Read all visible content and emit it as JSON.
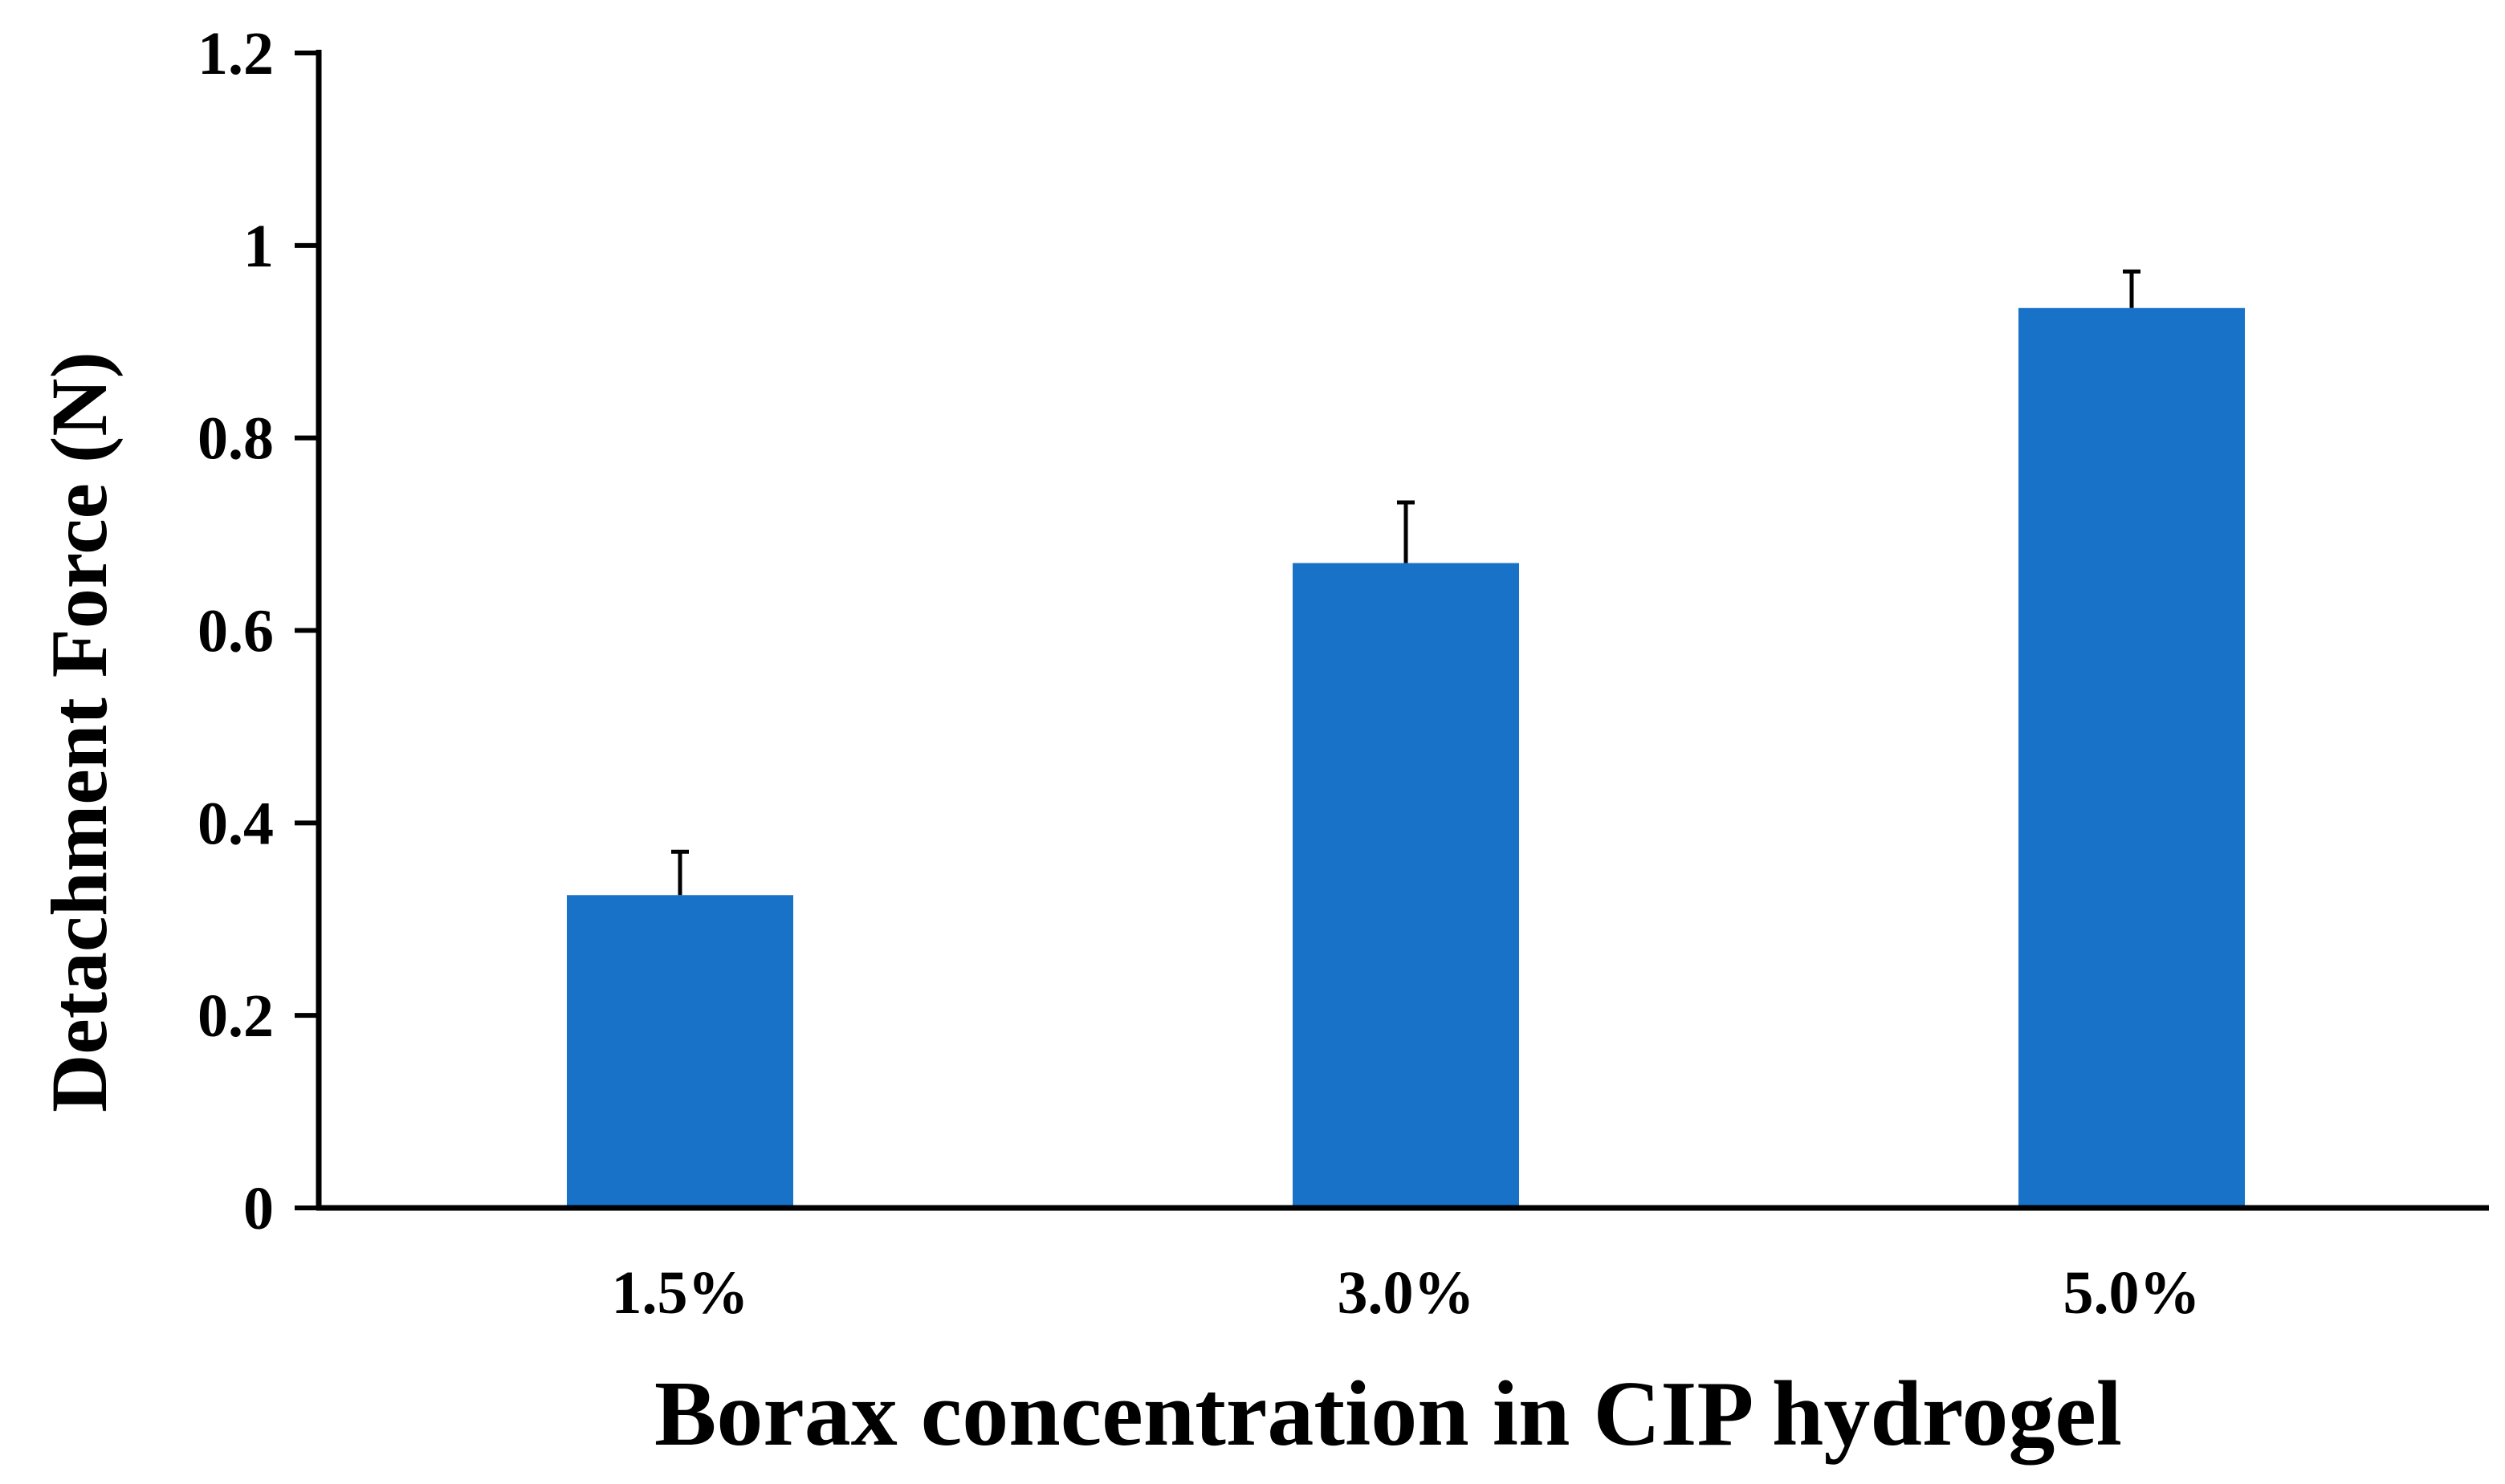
{
  "chart_data": {
    "type": "bar",
    "title": "",
    "xlabel": "Borax concentration in CIP hydrogel",
    "ylabel": "Detachment Force (N)",
    "categories": [
      "1.5%",
      "3.0%",
      "5.0%"
    ],
    "values": [
      0.325,
      0.67,
      0.935
    ],
    "error_upper": [
      0.045,
      0.063,
      0.038
    ],
    "ylim": [
      0,
      1.2
    ],
    "yticks": [
      0,
      0.2,
      0.4,
      0.6,
      0.8,
      1,
      1.2
    ],
    "ytick_labels": [
      "0",
      "0.2",
      "0.4",
      "0.6",
      "0.8",
      "1",
      "1.2"
    ],
    "grid": false,
    "legend": "none",
    "bar_color": "#1872C8",
    "axis_color": "#000000"
  }
}
